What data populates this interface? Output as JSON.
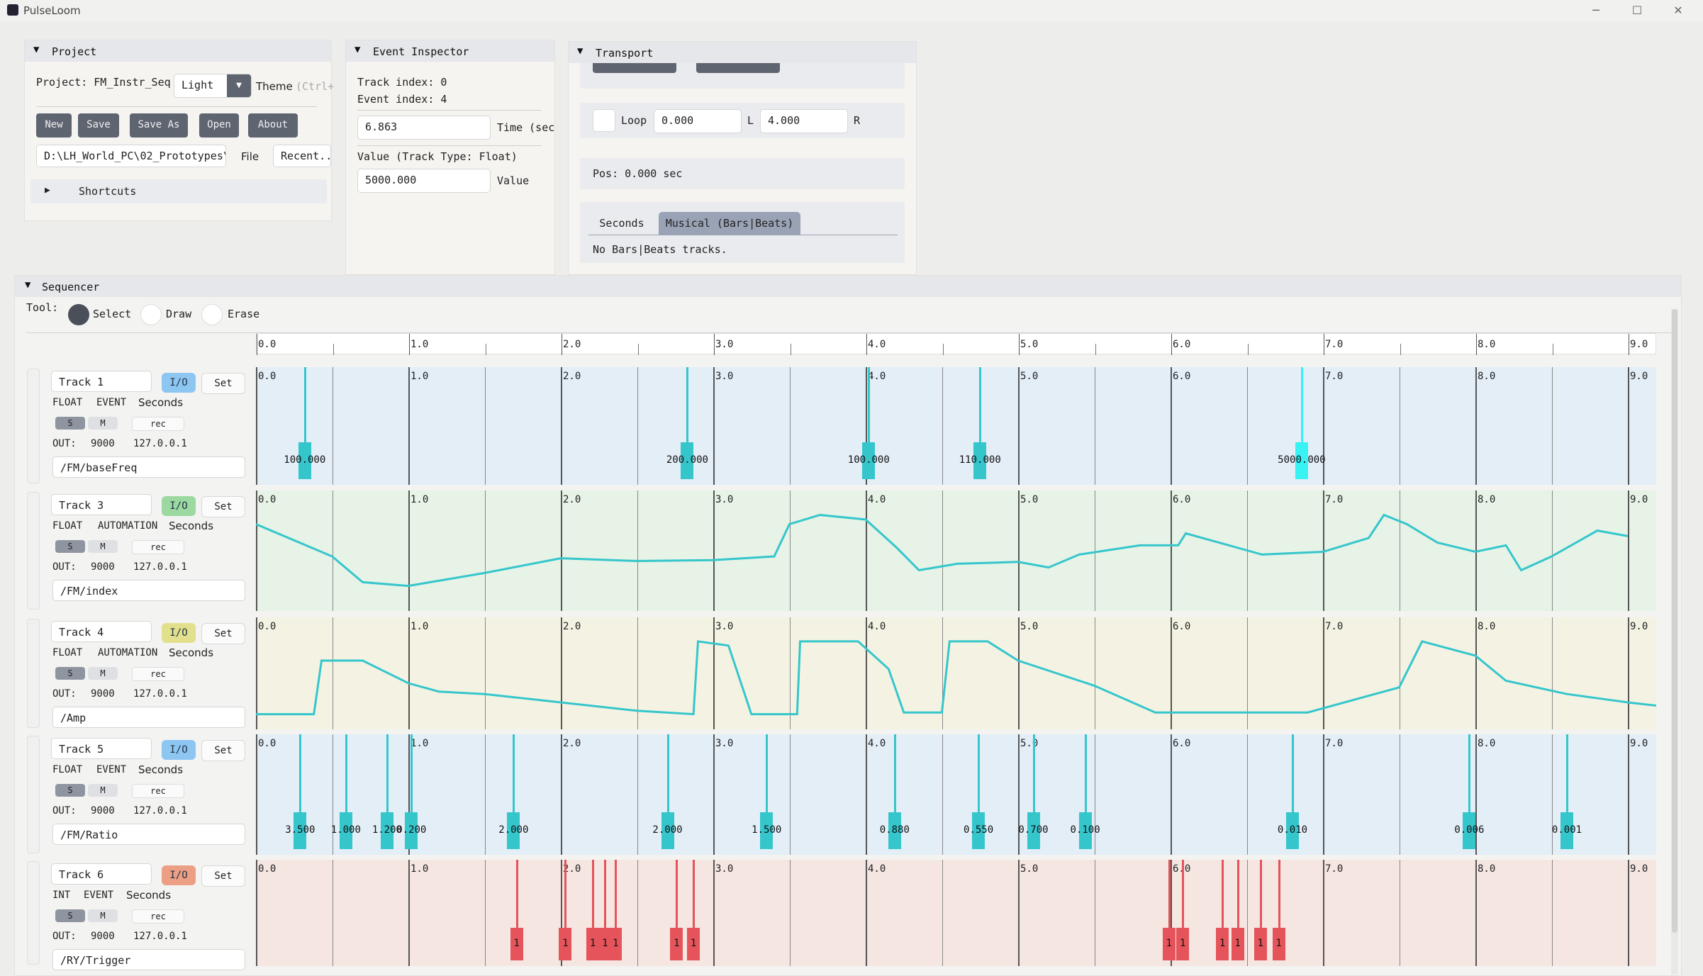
{
  "window": {
    "title": "PulseLoom",
    "controls": [
      "─",
      "☐",
      "✕"
    ]
  },
  "project": {
    "header": "Project",
    "project_label": "Project: FM_Instr_Seq",
    "theme_value": "Light",
    "theme_label": "Theme",
    "theme_hint": "(Ctrl+",
    "buttons": [
      "New",
      "Save",
      "Save As",
      "Open",
      "About"
    ],
    "file_path": "D:\\LH_World_PC\\02_Prototypes\\OS",
    "file_label": "File",
    "recent_label": "Recent..",
    "shortcuts_label": "Shortcuts"
  },
  "inspector": {
    "header": "Event Inspector",
    "track_index": "Track index: 0",
    "event_index": "Event index: 4",
    "time_value": "6.863",
    "time_label": "Time (sec",
    "value_heading": "Value (Track Type: Float)",
    "value_value": "5000.000",
    "value_label": "Value"
  },
  "transport": {
    "header": "Transport",
    "loop_label": "Loop",
    "loop_start": "0.000",
    "l_label": "L",
    "loop_end": "4.000",
    "r_label": "R",
    "pos": "Pos: 0.000 sec",
    "tabs": [
      "Seconds",
      "Musical (Bars|Beats)"
    ],
    "active_tab": 1,
    "tab_message": "No Bars|Beats tracks."
  },
  "sequencer": {
    "header": "Sequencer",
    "tool_label": "Tool:",
    "tools": [
      {
        "label": "Select",
        "selected": true
      },
      {
        "label": "Draw",
        "selected": false
      },
      {
        "label": "Erase",
        "selected": false
      }
    ],
    "ruler_labels": [
      "0.0",
      "1.0",
      "2.0",
      "3.0",
      "4.0",
      "5.0",
      "6.0",
      "7.0",
      "8.0",
      "9.0"
    ],
    "view_range": [
      0,
      9.2
    ]
  },
  "tracks": [
    {
      "name": "Track 1",
      "io": "I/O",
      "io_color": "#8ec6f2",
      "set": "Set",
      "type": "FLOAT",
      "mode": "EVENT",
      "unit": "Seconds",
      "s": "S",
      "m": "M",
      "rec": "rec",
      "out": "OUT:",
      "port": "9000",
      "ip": "127.0.0.1",
      "address": "/FM/baseFreq",
      "bg": "#e3eef7",
      "color": "#35c6cc",
      "events": [
        {
          "t": 0.32,
          "v": "100.000"
        },
        {
          "t": 2.83,
          "v": "200.000"
        },
        {
          "t": 4.02,
          "v": "100.000"
        },
        {
          "t": 4.75,
          "v": "110.000"
        },
        {
          "t": 6.86,
          "v": "5000.000",
          "selected": true
        }
      ]
    },
    {
      "name": "Track 3",
      "io": "I/O",
      "io_color": "#9bd9a1",
      "set": "Set",
      "type": "FLOAT",
      "mode": "AUTOMATION",
      "unit": "Seconds",
      "s": "S",
      "m": "M",
      "rec": "rec",
      "out": "OUT:",
      "port": "9000",
      "ip": "127.0.0.1",
      "address": "/FM/index",
      "bg": "#e6f3e6",
      "color": "#35c6cc",
      "points": [
        [
          0.0,
          0.85
        ],
        [
          0.5,
          0.5
        ],
        [
          0.7,
          0.22
        ],
        [
          1.0,
          0.18
        ],
        [
          1.5,
          0.32
        ],
        [
          2.0,
          0.48
        ],
        [
          2.5,
          0.45
        ],
        [
          3.0,
          0.46
        ],
        [
          3.4,
          0.5
        ],
        [
          3.5,
          0.85
        ],
        [
          3.7,
          0.95
        ],
        [
          4.0,
          0.9
        ],
        [
          4.2,
          0.6
        ],
        [
          4.35,
          0.35
        ],
        [
          4.6,
          0.42
        ],
        [
          5.0,
          0.44
        ],
        [
          5.2,
          0.38
        ],
        [
          5.4,
          0.52
        ],
        [
          5.8,
          0.62
        ],
        [
          6.05,
          0.62
        ],
        [
          6.1,
          0.75
        ],
        [
          6.6,
          0.52
        ],
        [
          7.0,
          0.55
        ],
        [
          7.3,
          0.7
        ],
        [
          7.4,
          0.95
        ],
        [
          7.55,
          0.85
        ],
        [
          7.75,
          0.65
        ],
        [
          8.0,
          0.55
        ],
        [
          8.2,
          0.62
        ],
        [
          8.3,
          0.35
        ],
        [
          8.5,
          0.5
        ],
        [
          8.8,
          0.78
        ],
        [
          9.0,
          0.72
        ]
      ]
    },
    {
      "name": "Track 4",
      "io": "I/O",
      "io_color": "#e2e08c",
      "set": "Set",
      "type": "FLOAT",
      "mode": "AUTOMATION",
      "unit": "Seconds",
      "s": "S",
      "m": "M",
      "rec": "rec",
      "out": "OUT:",
      "port": "9000",
      "ip": "127.0.0.1",
      "address": "/Amp",
      "bg": "#f4f3e3",
      "color": "#35c6cc",
      "points": [
        [
          0.0,
          0.08
        ],
        [
          0.38,
          0.08
        ],
        [
          0.43,
          0.72
        ],
        [
          0.7,
          0.72
        ],
        [
          1.0,
          0.45
        ],
        [
          1.2,
          0.35
        ],
        [
          1.5,
          0.32
        ],
        [
          2.0,
          0.22
        ],
        [
          2.5,
          0.12
        ],
        [
          2.87,
          0.08
        ],
        [
          2.9,
          0.95
        ],
        [
          3.1,
          0.9
        ],
        [
          3.25,
          0.08
        ],
        [
          3.55,
          0.08
        ],
        [
          3.57,
          0.95
        ],
        [
          3.95,
          0.95
        ],
        [
          4.15,
          0.62
        ],
        [
          4.25,
          0.1
        ],
        [
          4.5,
          0.1
        ],
        [
          4.55,
          0.95
        ],
        [
          4.8,
          0.95
        ],
        [
          5.0,
          0.72
        ],
        [
          5.5,
          0.42
        ],
        [
          5.9,
          0.1
        ],
        [
          6.5,
          0.1
        ],
        [
          6.9,
          0.1
        ],
        [
          7.5,
          0.4
        ],
        [
          7.65,
          0.95
        ],
        [
          8.0,
          0.78
        ],
        [
          8.2,
          0.48
        ],
        [
          8.6,
          0.32
        ],
        [
          9.0,
          0.22
        ],
        [
          9.2,
          0.18
        ]
      ]
    },
    {
      "name": "Track 5",
      "io": "I/O",
      "io_color": "#8ec6f2",
      "set": "Set",
      "type": "FLOAT",
      "mode": "EVENT",
      "unit": "Seconds",
      "s": "S",
      "m": "M",
      "rec": "rec",
      "out": "OUT:",
      "port": "9000",
      "ip": "127.0.0.1",
      "address": "/FM/Ratio",
      "bg": "#e3eef7",
      "color": "#35c6cc",
      "events": [
        {
          "t": 0.29,
          "v": "3.500"
        },
        {
          "t": 0.59,
          "v": "1.000"
        },
        {
          "t": 0.86,
          "v": "1.200"
        },
        {
          "t": 1.02,
          "v": "0.200"
        },
        {
          "t": 1.69,
          "v": "2.000"
        },
        {
          "t": 2.7,
          "v": "2.000"
        },
        {
          "t": 3.35,
          "v": "1.500"
        },
        {
          "t": 4.19,
          "v": "0.880"
        },
        {
          "t": 4.74,
          "v": "0.550"
        },
        {
          "t": 5.1,
          "v": "0.700"
        },
        {
          "t": 5.44,
          "v": "0.100"
        },
        {
          "t": 6.8,
          "v": "0.010"
        },
        {
          "t": 7.96,
          "v": "0.006"
        },
        {
          "t": 8.6,
          "v": "0.001"
        }
      ]
    },
    {
      "name": "Track 6",
      "io": "I/O",
      "io_color": "#ec9f85",
      "set": "Set",
      "type": "INT",
      "mode": "EVENT",
      "unit": "Seconds",
      "s": "S",
      "m": "M",
      "rec": "rec",
      "out": "OUT:",
      "port": "9000",
      "ip": "127.0.0.1",
      "address": "/RY/Trigger",
      "bg": "#f5e6e1",
      "color": "#e4545a",
      "events": [
        {
          "t": 1.71,
          "v": "1"
        },
        {
          "t": 2.03,
          "v": "1"
        },
        {
          "t": 2.21,
          "v": "1"
        },
        {
          "t": 2.29,
          "v": "1"
        },
        {
          "t": 2.36,
          "v": "1"
        },
        {
          "t": 2.76,
          "v": "1"
        },
        {
          "t": 2.87,
          "v": "1"
        },
        {
          "t": 5.99,
          "v": "1"
        },
        {
          "t": 6.08,
          "v": "1"
        },
        {
          "t": 6.34,
          "v": "1"
        },
        {
          "t": 6.44,
          "v": "1"
        },
        {
          "t": 6.59,
          "v": "1"
        },
        {
          "t": 6.71,
          "v": "1"
        }
      ]
    }
  ]
}
